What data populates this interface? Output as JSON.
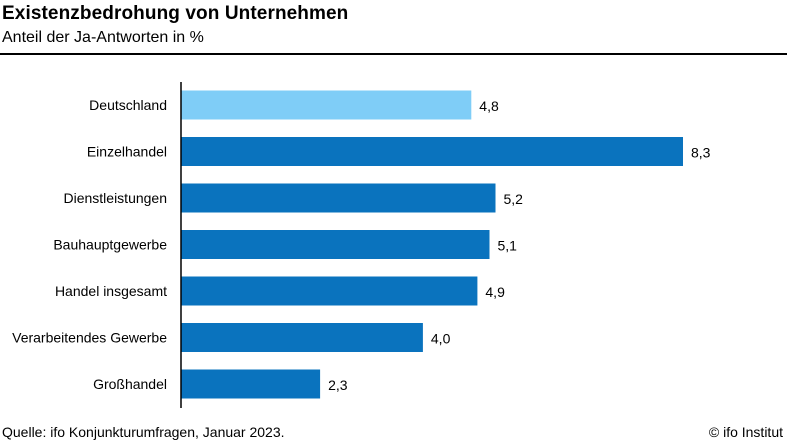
{
  "header": {
    "title": "Existenzbedrohung von Unternehmen",
    "subtitle": "Anteil der Ja-Antworten in %"
  },
  "footer": {
    "source": "Quelle: ifo Konjunkturumfragen, Januar 2023.",
    "copyright": "© ifo Institut"
  },
  "colors": {
    "highlight": "#7fcdf7",
    "bar": "#0a73be",
    "axis": "#000000"
  },
  "chart_data": {
    "type": "bar",
    "orientation": "horizontal",
    "title": "Existenzbedrohung von Unternehmen",
    "subtitle": "Anteil der Ja-Antworten in %",
    "categories": [
      "Deutschland",
      "Einzelhandel",
      "Dienstleistungen",
      "Bauhauptgewerbe",
      "Handel insgesamt",
      "Verarbeitendes Gewerbe",
      "Großhandel"
    ],
    "values": [
      4.8,
      8.3,
      5.2,
      5.1,
      4.9,
      4.0,
      2.3
    ],
    "value_labels": [
      "4,8",
      "8,3",
      "5,2",
      "5,1",
      "4,9",
      "4,0",
      "2,3"
    ],
    "highlighted": [
      "Deutschland"
    ],
    "xlim": [
      0,
      8.3
    ],
    "grid": false,
    "legend": "none"
  }
}
